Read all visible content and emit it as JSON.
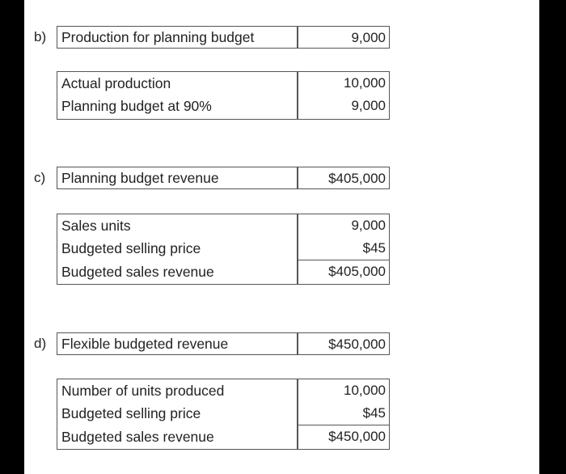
{
  "b": {
    "letter": "b)",
    "header_label": "Production for planning budget",
    "header_value": "9,000",
    "rows": [
      {
        "label": "Actual production",
        "value": "10,000"
      },
      {
        "label": "Planning budget at 90%",
        "value": "9,000"
      }
    ]
  },
  "c": {
    "letter": "c)",
    "header_label": "Planning budget revenue",
    "header_value": "$405,000",
    "rows": [
      {
        "label": "Sales units",
        "value": "9,000"
      },
      {
        "label": "Budgeted selling price",
        "value": "$45"
      },
      {
        "label": "Budgeted sales revenue",
        "value": "$405,000"
      }
    ]
  },
  "d": {
    "letter": "d)",
    "header_label": "Flexible budgeted revenue",
    "header_value": "$450,000",
    "rows": [
      {
        "label": "Number of units produced",
        "value": "10,000"
      },
      {
        "label": "Budgeted selling price",
        "value": "$45"
      },
      {
        "label": "Budgeted sales revenue",
        "value": "$450,000"
      }
    ]
  }
}
